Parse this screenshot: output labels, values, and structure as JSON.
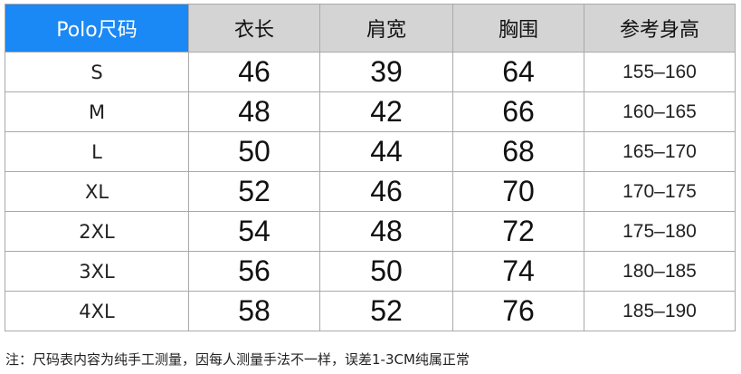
{
  "headers": [
    "Polo尺码",
    "衣长",
    "肩宽",
    "胸围",
    "参考身高"
  ],
  "rows": [
    [
      "S",
      "46",
      "39",
      "64",
      "155–160"
    ],
    [
      "M",
      "48",
      "42",
      "66",
      "160–165"
    ],
    [
      "L",
      "50",
      "44",
      "68",
      "165–170"
    ],
    [
      "XL",
      "52",
      "46",
      "70",
      "170–175"
    ],
    [
      "2XL",
      "54",
      "48",
      "72",
      "175–180"
    ],
    [
      "3XL",
      "56",
      "50",
      "74",
      "180–185"
    ],
    [
      "4XL",
      "58",
      "52",
      "76",
      "185–190"
    ]
  ],
  "note": "注：尺码表内容为纯手工测量，因每人测量手法不一样，误差1-3CM纯属正常",
  "colors": {
    "header_accent": "#1a88f5",
    "header_gray": "#d4d4d4"
  }
}
